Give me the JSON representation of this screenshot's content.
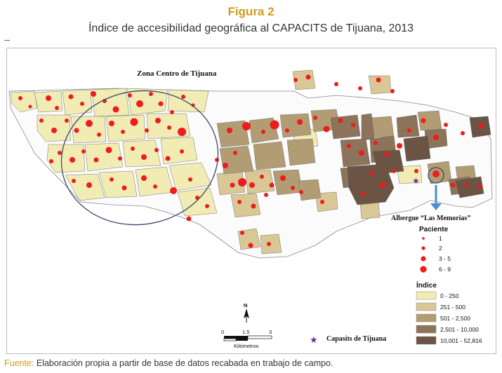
{
  "figure": {
    "title": "Figura 2",
    "subtitle": "Índice de accesibilidad geográfica al CAPACITS de Tijuana, 2013"
  },
  "map": {
    "zone_label": "Zona Centro de Tijuana",
    "albergue_label": "Albergue “Las Memorias”",
    "capasits_label": "Capasits de Tijuana",
    "north_label": "N",
    "scale": {
      "ticks": [
        "0",
        "1.5",
        "3"
      ],
      "unit": "Kilómetros"
    },
    "legend_paciente": {
      "title": "Paciente",
      "items": [
        "1",
        "2",
        "3 - 5",
        "6 - 9"
      ]
    },
    "legend_indice": {
      "title": "Índice",
      "items": [
        {
          "label": "0 - 250",
          "color": "#f1ebb4"
        },
        {
          "label": "251 - 500",
          "color": "#d9c795"
        },
        {
          "label": "501 - 2,500",
          "color": "#b29c73"
        },
        {
          "label": "2,501 - 10,000",
          "color": "#8c735a"
        },
        {
          "label": "10,001 - 52,816",
          "color": "#6b5443"
        }
      ]
    },
    "colors": {
      "dot": "#ee1c1c",
      "star": "#6a2d91",
      "arrow": "#4b8fd6",
      "ellipse": "#3a4a6b"
    }
  },
  "source": {
    "label": "Fuente:",
    "text": " Elaboración propia a partir de base de datos recabada en trabajo de campo."
  }
}
